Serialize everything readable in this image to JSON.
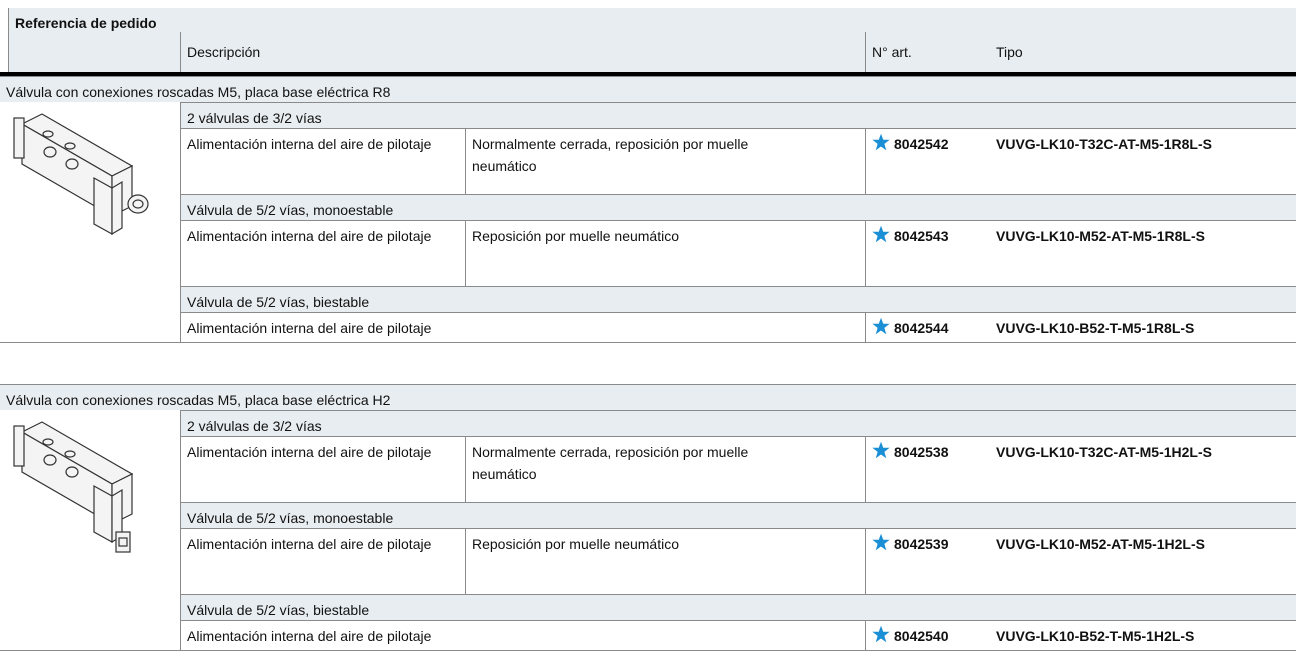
{
  "header": {
    "title": "Referencia de pedido",
    "columns": [
      "Descripción",
      "N° art.",
      "Tipo"
    ]
  },
  "sections": [
    {
      "title": "Válvula con conexiones roscadas M5, placa base eléctrica R8",
      "groups": [
        {
          "title": "2 válvulas de 3/2 vías",
          "supply": "Alimentación interna del aire de pilotaje",
          "description": "Normalmente cerrada, reposición por muelle neumático",
          "number": "8042542",
          "type": "VUVG-LK10-T32C-AT-M5-1R8L-S"
        },
        {
          "title": "Válvula de 5/2 vías, monoestable",
          "supply": "Alimentación interna del aire de pilotaje",
          "description": "Reposición por muelle neumático",
          "number": "8042543",
          "type": "VUVG-LK10-M52-AT-M5-1R8L-S"
        },
        {
          "title": "Válvula de 5/2 vías, biestable",
          "supply": "Alimentación interna del aire de pilotaje",
          "number": "8042544",
          "type": "VUVG-LK10-B52-T-M5-1R8L-S"
        }
      ]
    },
    {
      "title": "Válvula con conexiones roscadas M5, placa base eléctrica H2",
      "groups": [
        {
          "title": "2 válvulas de 3/2 vías",
          "supply": "Alimentación interna del aire de pilotaje",
          "description": "Normalmente cerrada, reposición por muelle neumático",
          "number": "8042538",
          "type": "VUVG-LK10-T32C-AT-M5-1H2L-S"
        },
        {
          "title": "Válvula de 5/2 vías, monoestable",
          "supply": "Alimentación interna del aire de pilotaje",
          "description": "Reposición por muelle neumático",
          "number": "8042539",
          "type": "VUVG-LK10-M52-AT-M5-1H2L-S"
        },
        {
          "title": "Válvula de 5/2 vías, biestable",
          "supply": "Alimentación interna del aire de pilotaje",
          "number": "8042540",
          "type": "VUVG-LK10-B52-T-M5-1H2L-S"
        }
      ]
    }
  ]
}
